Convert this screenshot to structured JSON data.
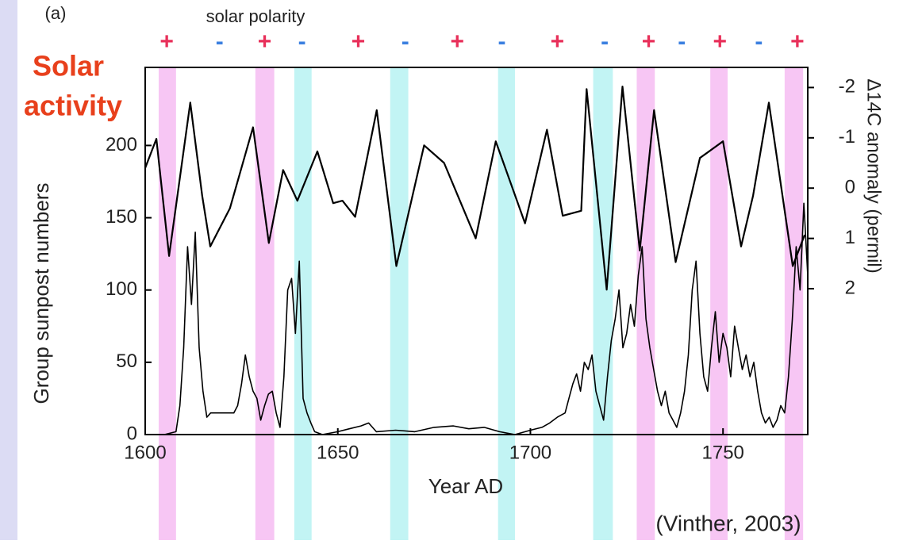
{
  "chart_data": {
    "type": "line",
    "panel_label": "(a)",
    "polarity_title": "solar polarity",
    "annotation": [
      "Solar",
      "activity"
    ],
    "annotation_color": "#e8401c",
    "ylabel": "Group sunpost numbers",
    "y2label": "Δ14C anomaly (permil)",
    "xlabel": "Year AD",
    "source": "(Vinther, 2003)",
    "xlim": [
      1600,
      1772
    ],
    "xticks": [
      1600,
      1650,
      1700,
      1750
    ],
    "ylim": [
      0,
      254
    ],
    "yticks": [
      0,
      50,
      100,
      150,
      200
    ],
    "y2lim": [
      4.9,
      -2.4
    ],
    "y2ticks": [
      -2,
      -1,
      0,
      1,
      2
    ],
    "bands": [
      {
        "x": [
          1603.5,
          1608
        ],
        "color": "#f7c6f4"
      },
      {
        "x": [
          1628.6,
          1633.5
        ],
        "color": "#f7c6f4"
      },
      {
        "x": [
          1638.7,
          1643.2
        ],
        "color": "#c2f4f4"
      },
      {
        "x": [
          1663.6,
          1668.3
        ],
        "color": "#c2f4f4"
      },
      {
        "x": [
          1691.6,
          1696
        ],
        "color": "#c2f4f4"
      },
      {
        "x": [
          1716.3,
          1721.4
        ],
        "color": "#c2f4f4"
      },
      {
        "x": [
          1727.6,
          1732.3
        ],
        "color": "#f7c6f4"
      },
      {
        "x": [
          1746.7,
          1751.2
        ],
        "color": "#f7c6f4"
      },
      {
        "x": [
          1766,
          1770.8
        ],
        "color": "#f7c6f4"
      }
    ],
    "polarity": [
      {
        "x": 1605.6,
        "label": "+",
        "color": "#e8305a"
      },
      {
        "x": 1619.3,
        "label": "-",
        "color": "#3a7fe0"
      },
      {
        "x": 1631,
        "label": "+",
        "color": "#e8305a"
      },
      {
        "x": 1640.7,
        "label": "-",
        "color": "#3a7fe0"
      },
      {
        "x": 1655.3,
        "label": "+",
        "color": "#e8305a"
      },
      {
        "x": 1667.5,
        "label": "-",
        "color": "#3a7fe0"
      },
      {
        "x": 1681,
        "label": "+",
        "color": "#e8305a"
      },
      {
        "x": 1692.6,
        "label": "-",
        "color": "#3a7fe0"
      },
      {
        "x": 1707,
        "label": "+",
        "color": "#e8305a"
      },
      {
        "x": 1719.3,
        "label": "-",
        "color": "#3a7fe0"
      },
      {
        "x": 1730.7,
        "label": "+",
        "color": "#e8305a"
      },
      {
        "x": 1739.3,
        "label": "-",
        "color": "#3a7fe0"
      },
      {
        "x": 1749.2,
        "label": "+",
        "color": "#e8305a"
      },
      {
        "x": 1759.3,
        "label": "-",
        "color": "#3a7fe0"
      },
      {
        "x": 1769.3,
        "label": "+",
        "color": "#e8305a"
      }
    ],
    "series": [
      {
        "color": "#000000",
        "x": [
          1600,
          1605,
          1608,
          1609,
          1610,
          1611,
          1612,
          1613,
          1614,
          1615,
          1616,
          1617,
          1618,
          1619,
          1620,
          1621,
          1622,
          1623,
          1624,
          1625,
          1626,
          1627,
          1628,
          1629,
          1630,
          1631,
          1632,
          1633,
          1634,
          1635,
          1636,
          1637,
          1638,
          1639,
          1640,
          1641,
          1642,
          1643,
          1644,
          1646,
          1650,
          1653,
          1656,
          1658,
          1660,
          1665,
          1670,
          1675,
          1680,
          1684,
          1688,
          1692,
          1696,
          1700,
          1703,
          1705,
          1707,
          1709,
          1710,
          1711,
          1712,
          1713,
          1714,
          1715,
          1716,
          1717,
          1718,
          1719,
          1720,
          1721,
          1722,
          1723,
          1724,
          1725,
          1726,
          1727,
          1728,
          1729,
          1730,
          1731,
          1732,
          1733,
          1734,
          1735,
          1736,
          1737,
          1738,
          1739,
          1740,
          1741,
          1742,
          1743,
          1744,
          1745,
          1746,
          1747,
          1748,
          1749,
          1750,
          1751,
          1752,
          1753,
          1754,
          1755,
          1756,
          1757,
          1758,
          1759,
          1760,
          1761,
          1762,
          1763,
          1764,
          1765,
          1766,
          1767,
          1768,
          1769,
          1770,
          1771,
          1772
        ],
        "values": [
          0,
          0,
          2,
          20,
          60,
          130,
          90,
          140,
          60,
          30,
          12,
          15,
          15,
          15,
          15,
          15,
          15,
          15,
          20,
          35,
          55,
          40,
          30,
          25,
          10,
          20,
          28,
          30,
          15,
          5,
          40,
          100,
          108,
          70,
          120,
          25,
          15,
          8,
          2,
          0,
          2,
          4,
          6,
          8,
          2,
          3,
          2,
          5,
          6,
          4,
          5,
          2,
          0,
          3,
          5,
          8,
          12,
          15,
          25,
          35,
          42,
          30,
          50,
          45,
          55,
          30,
          20,
          10,
          40,
          65,
          80,
          100,
          60,
          70,
          90,
          75,
          110,
          130,
          80,
          60,
          45,
          30,
          20,
          30,
          15,
          10,
          5,
          15,
          30,
          55,
          100,
          120,
          70,
          40,
          30,
          60,
          85,
          50,
          70,
          60,
          40,
          75,
          60,
          45,
          55,
          40,
          50,
          30,
          15,
          8,
          12,
          5,
          10,
          20,
          15,
          40,
          80,
          130,
          100,
          160,
          110
        ]
      },
      {
        "color": "#000000",
        "axis": "y2",
        "x": [
          1600,
          1602.9,
          1606.2,
          1611.7,
          1614.8,
          1616.9,
          1622,
          1628,
          1632.1,
          1635.8,
          1639.5,
          1644.7,
          1648.8,
          1651.2,
          1654.5,
          1660.1,
          1665.2,
          1672.4,
          1677.6,
          1685.8,
          1691,
          1698.6,
          1704.3,
          1708.4,
          1713.2,
          1714.6,
          1719.8,
          1723.9,
          1728.4,
          1732.1,
          1737.7,
          1744,
          1750,
          1754.7,
          1757.8,
          1761.9,
          1768.1,
          1771.2
        ],
        "values": [
          -0.4,
          -0.98,
          1.35,
          -1.7,
          0.15,
          1.16,
          0.4,
          -1.21,
          1.09,
          -0.36,
          0.25,
          -0.73,
          0.3,
          0.25,
          0.57,
          -1.55,
          1.55,
          -0.85,
          -0.5,
          1.0,
          -0.93,
          0.7,
          -1.16,
          0.55,
          0.45,
          -1.97,
          2.02,
          -2.02,
          1.24,
          -1.55,
          1.47,
          -0.6,
          -0.93,
          1.16,
          0.15,
          -1.7,
          1.55,
          0.93
        ]
      }
    ]
  }
}
